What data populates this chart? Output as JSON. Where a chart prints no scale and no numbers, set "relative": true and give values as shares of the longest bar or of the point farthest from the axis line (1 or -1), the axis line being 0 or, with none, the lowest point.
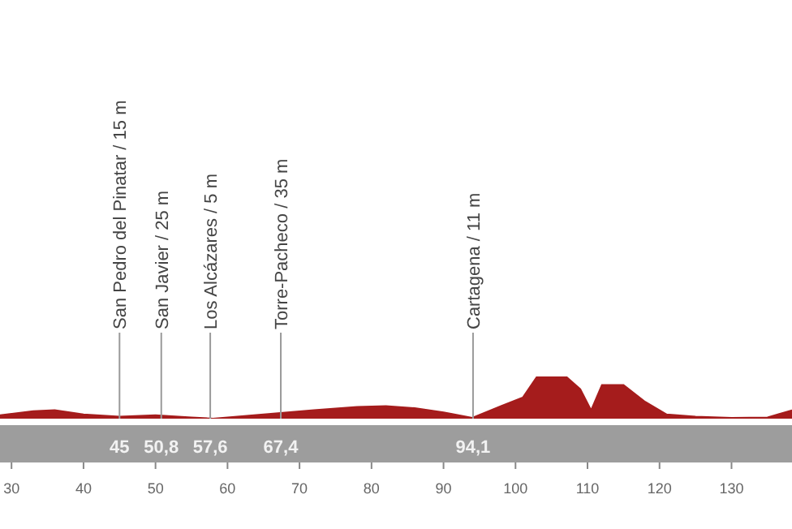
{
  "chart_data": {
    "type": "area",
    "relative": true,
    "xlim": [
      28.4,
      138.4
    ],
    "xticks": [
      30,
      40,
      50,
      60,
      70,
      80,
      90,
      100,
      110,
      120,
      130
    ],
    "x": [
      28.4,
      33,
      36,
      40,
      45,
      50,
      55,
      58,
      65,
      72,
      78,
      82,
      86,
      90,
      94,
      98,
      101,
      103,
      107,
      109,
      110.5,
      112,
      115,
      118,
      121,
      125,
      130,
      135,
      138.4
    ],
    "series": [
      {
        "color": "#a51c1c",
        "values": [
          0.08,
          0.18,
          0.2,
          0.1,
          0.05,
          0.08,
          0.03,
          0,
          0.1,
          0.2,
          0.28,
          0.3,
          0.25,
          0.15,
          0.02,
          0.3,
          0.5,
          1,
          1,
          0.7,
          0.2,
          0.8,
          0.8,
          0.4,
          0.1,
          0.05,
          0.02,
          0.03,
          0.2
        ]
      }
    ],
    "ref_lines": [
      {
        "axis": "x",
        "value": 45,
        "label": "San Pedro del Pinatar / 15 m",
        "color": "#9a9a9a"
      },
      {
        "axis": "x",
        "value": 50.8,
        "label": "San Javier / 25 m",
        "color": "#9a9a9a"
      },
      {
        "axis": "x",
        "value": 57.6,
        "label": "Los Alcázares / 5 m",
        "color": "#9a9a9a"
      },
      {
        "axis": "x",
        "value": 67.4,
        "label": "Torre-Pacheco / 35 m",
        "color": "#9a9a9a"
      },
      {
        "axis": "x",
        "value": 94.1,
        "label": "Cartagena / 11 m",
        "color": "#9a9a9a"
      }
    ],
    "annotations": [
      "45",
      "50,8",
      "57,6",
      "67,4",
      "94,1"
    ]
  }
}
